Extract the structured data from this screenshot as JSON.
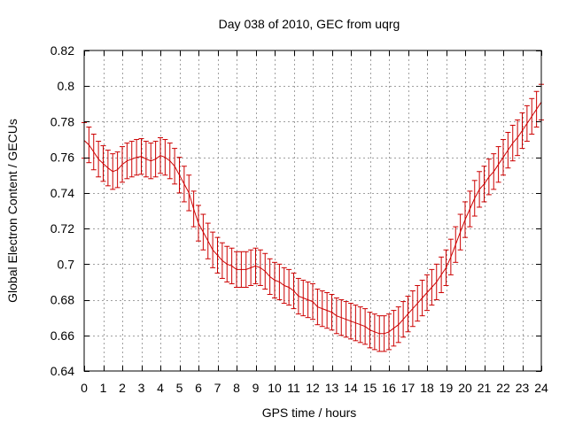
{
  "chart_data": {
    "type": "line",
    "title": "Day 038 of 2010, GEC from uqrg",
    "xlabel": "GPS time / hours",
    "ylabel": "Global Electron Content / GECUs",
    "xlim": [
      0,
      24
    ],
    "ylim": [
      0.64,
      0.82
    ],
    "xticks": [
      0,
      1,
      2,
      3,
      4,
      5,
      6,
      7,
      8,
      9,
      10,
      11,
      12,
      13,
      14,
      15,
      16,
      17,
      18,
      19,
      20,
      21,
      22,
      23,
      24
    ],
    "xtick_labels": [
      "0",
      "1",
      "2",
      "3",
      "4",
      "5",
      "6",
      "7",
      "8",
      "9",
      "10",
      "11",
      "12",
      "13",
      "14",
      "15",
      "16",
      "17",
      "18",
      "19",
      "20",
      "21",
      "22",
      "23",
      "24"
    ],
    "yticks": [
      0.64,
      0.66,
      0.68,
      0.7,
      0.72,
      0.74,
      0.76,
      0.78,
      0.8,
      0.82
    ],
    "ytick_labels": [
      "0.64",
      "0.66",
      "0.68",
      "0.7",
      "0.72",
      "0.74",
      "0.76",
      "0.78",
      "0.8",
      "0.82"
    ],
    "grid": true,
    "error_bars": true,
    "color": "#cc0000",
    "series": [
      {
        "x": [
          0.0,
          0.25,
          0.5,
          0.75,
          1.0,
          1.25,
          1.5,
          1.75,
          2.0,
          2.25,
          2.5,
          2.75,
          3.0,
          3.25,
          3.5,
          3.75,
          4.0,
          4.25,
          4.5,
          4.75,
          5.0,
          5.25,
          5.5,
          5.75,
          6.0,
          6.25,
          6.5,
          6.75,
          7.0,
          7.25,
          7.5,
          7.75,
          8.0,
          8.25,
          8.5,
          8.75,
          9.0,
          9.25,
          9.5,
          9.75,
          10.0,
          10.25,
          10.5,
          10.75,
          11.0,
          11.25,
          11.5,
          11.75,
          12.0,
          12.25,
          12.5,
          12.75,
          13.0,
          13.25,
          13.5,
          13.75,
          14.0,
          14.25,
          14.5,
          14.75,
          15.0,
          15.25,
          15.5,
          15.75,
          16.0,
          16.25,
          16.5,
          16.75,
          17.0,
          17.25,
          17.5,
          17.75,
          18.0,
          18.25,
          18.5,
          18.75,
          19.0,
          19.25,
          19.5,
          19.75,
          20.0,
          20.25,
          20.5,
          20.75,
          21.0,
          21.25,
          21.5,
          21.75,
          22.0,
          22.25,
          22.5,
          22.75,
          23.0,
          23.25,
          23.5,
          23.75,
          24.0
        ],
        "y": [
          0.7695,
          0.767,
          0.763,
          0.759,
          0.7565,
          0.754,
          0.752,
          0.753,
          0.756,
          0.758,
          0.759,
          0.76,
          0.7605,
          0.759,
          0.758,
          0.759,
          0.761,
          0.76,
          0.758,
          0.755,
          0.75,
          0.745,
          0.74,
          0.731,
          0.723,
          0.718,
          0.713,
          0.708,
          0.705,
          0.702,
          0.7,
          0.699,
          0.697,
          0.697,
          0.697,
          0.698,
          0.699,
          0.698,
          0.696,
          0.693,
          0.691,
          0.69,
          0.688,
          0.687,
          0.685,
          0.682,
          0.681,
          0.68,
          0.679,
          0.676,
          0.675,
          0.674,
          0.673,
          0.671,
          0.67,
          0.669,
          0.668,
          0.667,
          0.666,
          0.665,
          0.663,
          0.662,
          0.661,
          0.661,
          0.662,
          0.664,
          0.666,
          0.669,
          0.672,
          0.675,
          0.678,
          0.681,
          0.684,
          0.687,
          0.69,
          0.694,
          0.698,
          0.704,
          0.711,
          0.718,
          0.725,
          0.731,
          0.737,
          0.742,
          0.745,
          0.749,
          0.752,
          0.756,
          0.76,
          0.764,
          0.768,
          0.771,
          0.775,
          0.779,
          0.783,
          0.787,
          0.791
        ],
        "err": 0.01
      }
    ]
  }
}
